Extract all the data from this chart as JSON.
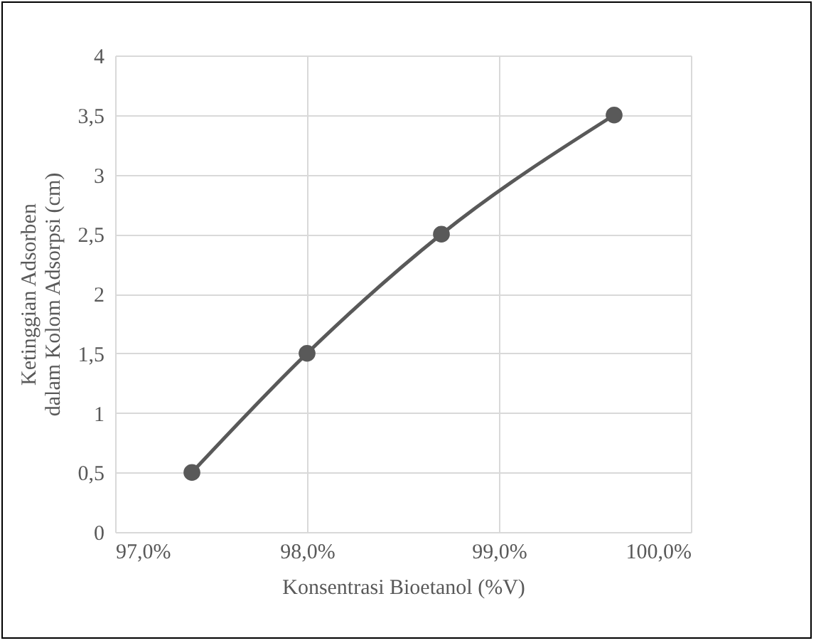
{
  "chart_data": {
    "type": "line",
    "xlabel": "Konsentrasi Bioetanol (%V)",
    "ylabel": "Ketinggian Adsorben dalam Kolom Adsorpsi (cm)",
    "x": [
      97.4,
      98.0,
      98.7,
      99.6
    ],
    "series": [
      {
        "color": "#595959",
        "values": [
          0.5,
          1.5,
          2.5,
          3.5
        ]
      }
    ],
    "xlim": [
      97,
      100
    ],
    "xticks": [
      {
        "value": 97,
        "label": "97,0%"
      },
      {
        "value": 98,
        "label": "98,0%"
      },
      {
        "value": 99,
        "label": "99,0%"
      },
      {
        "value": 100,
        "label": "100,0%"
      }
    ],
    "ylim": [
      0,
      4
    ],
    "yticks": [
      0,
      {
        "value": 0.5,
        "label": "0,5"
      },
      1,
      {
        "value": 1.5,
        "label": "1,5"
      },
      2,
      {
        "value": 2.5,
        "label": "2,5"
      },
      3,
      {
        "value": 3.5,
        "label": "3,5"
      },
      4
    ],
    "grid": true,
    "marker": "circle",
    "line_style": "solid"
  }
}
